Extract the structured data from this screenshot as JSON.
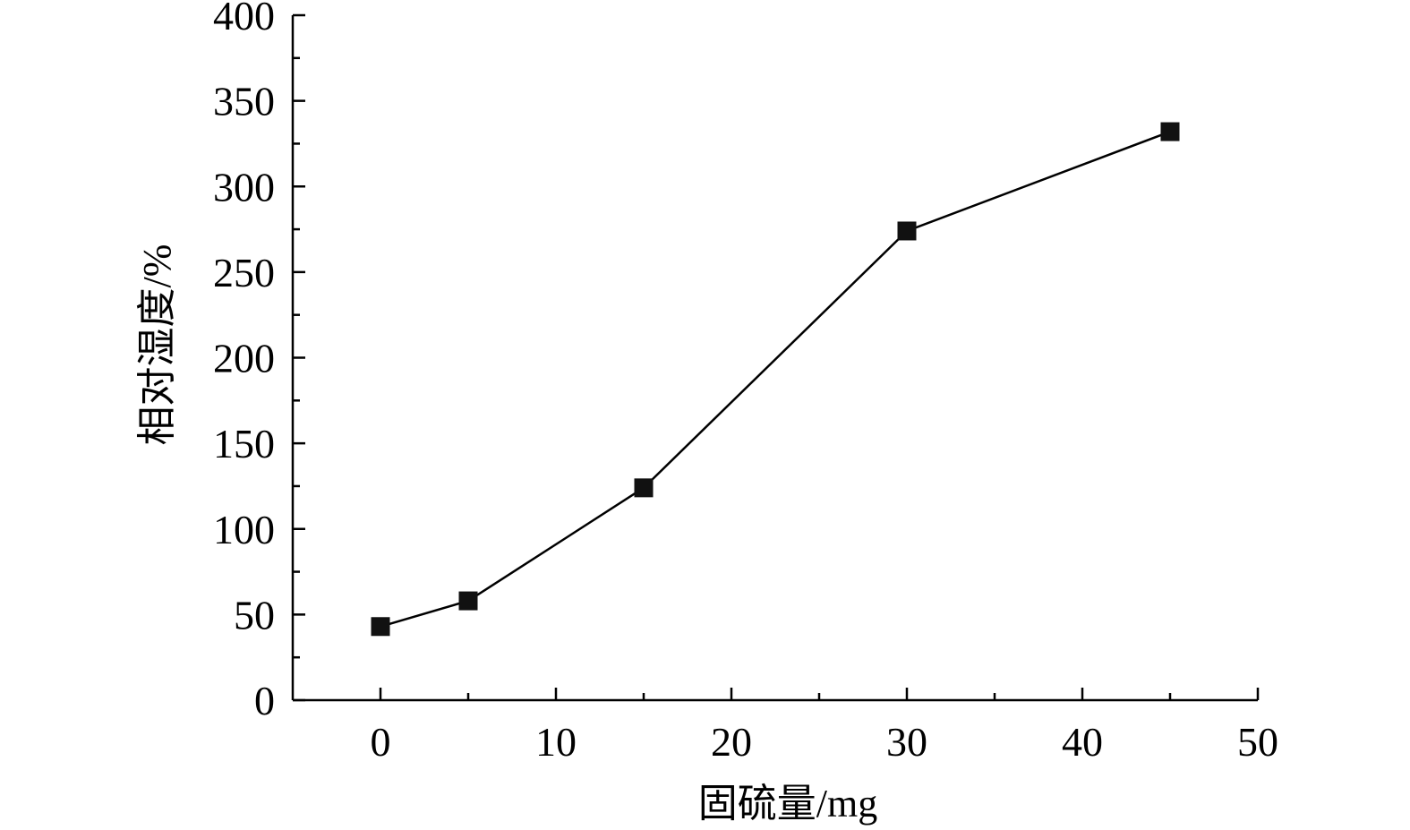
{
  "chart_data": {
    "type": "line",
    "x": [
      0,
      5,
      15,
      30,
      45
    ],
    "series": [
      {
        "values": [
          43,
          58,
          124,
          274,
          332
        ],
        "marker": "square"
      }
    ],
    "xlabel": "固硫量/mg",
    "ylabel": "相对湿度/%",
    "xlim": [
      -5,
      50
    ],
    "ylim": [
      0,
      400
    ],
    "x_ticks": [
      0,
      10,
      20,
      30,
      40,
      50
    ],
    "y_ticks": [
      0,
      50,
      100,
      150,
      200,
      250,
      300,
      350,
      400
    ],
    "x_minor_step": 5,
    "y_minor_step": 25,
    "grid": false,
    "legend": "none",
    "colors": {
      "line": "#000000",
      "marker": "#111111",
      "axis": "#000000",
      "background": "#ffffff"
    }
  }
}
